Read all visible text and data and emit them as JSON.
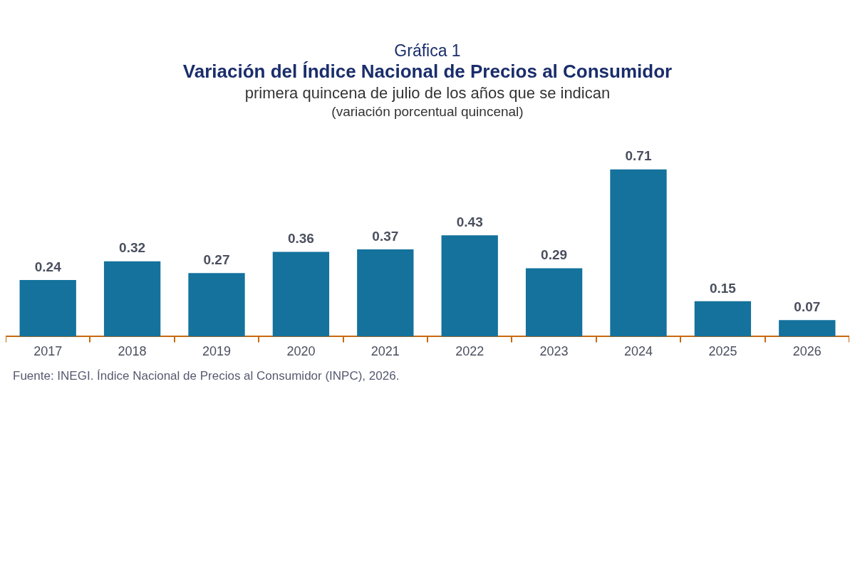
{
  "chart_data": {
    "type": "bar",
    "title": "Variación del Índice Nacional de Precios al Consumidor",
    "subtitle": "primera quincena de julio de los años que se indican",
    "ylabel": "(variación porcentual quincenal)",
    "annotations": [
      "Gráfica 1",
      "Fuente: INEGI. Índice Nacional de Precios al Consumidor (INPC), 2026."
    ],
    "categories": [
      "2017",
      "2018",
      "2019",
      "2020",
      "2021",
      "2022",
      "2023",
      "2024",
      "2025",
      "2026"
    ],
    "values": [
      0.24,
      0.32,
      0.27,
      0.36,
      0.37,
      0.43,
      0.29,
      0.71,
      0.15,
      0.07
    ],
    "color": "#14729c",
    "data_labels": true,
    "grid": false,
    "legend": false
  }
}
